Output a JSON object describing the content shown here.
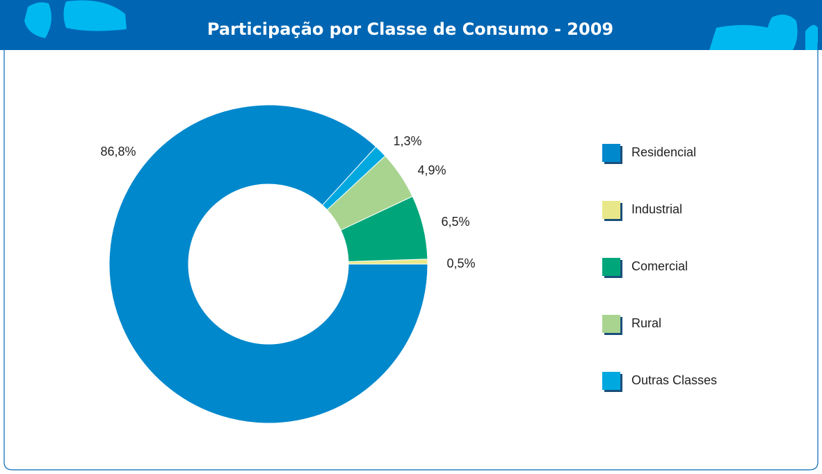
{
  "chart_data": {
    "type": "donut",
    "title": "Participação por Classe de Consumo - 2009",
    "categories": [
      "Residencial",
      "Industrial",
      "Comercial",
      "Rural",
      "Outras Classes"
    ],
    "values": [
      86.8,
      0.5,
      6.5,
      4.9,
      1.3
    ],
    "value_labels": [
      "86,8%",
      "0,5%",
      "6,5%",
      "4,9%",
      "1,3%"
    ],
    "colors": [
      "#0088cc",
      "#e8e88a",
      "#00a67a",
      "#a8d490",
      "#00a8e0"
    ],
    "legend": "right"
  }
}
